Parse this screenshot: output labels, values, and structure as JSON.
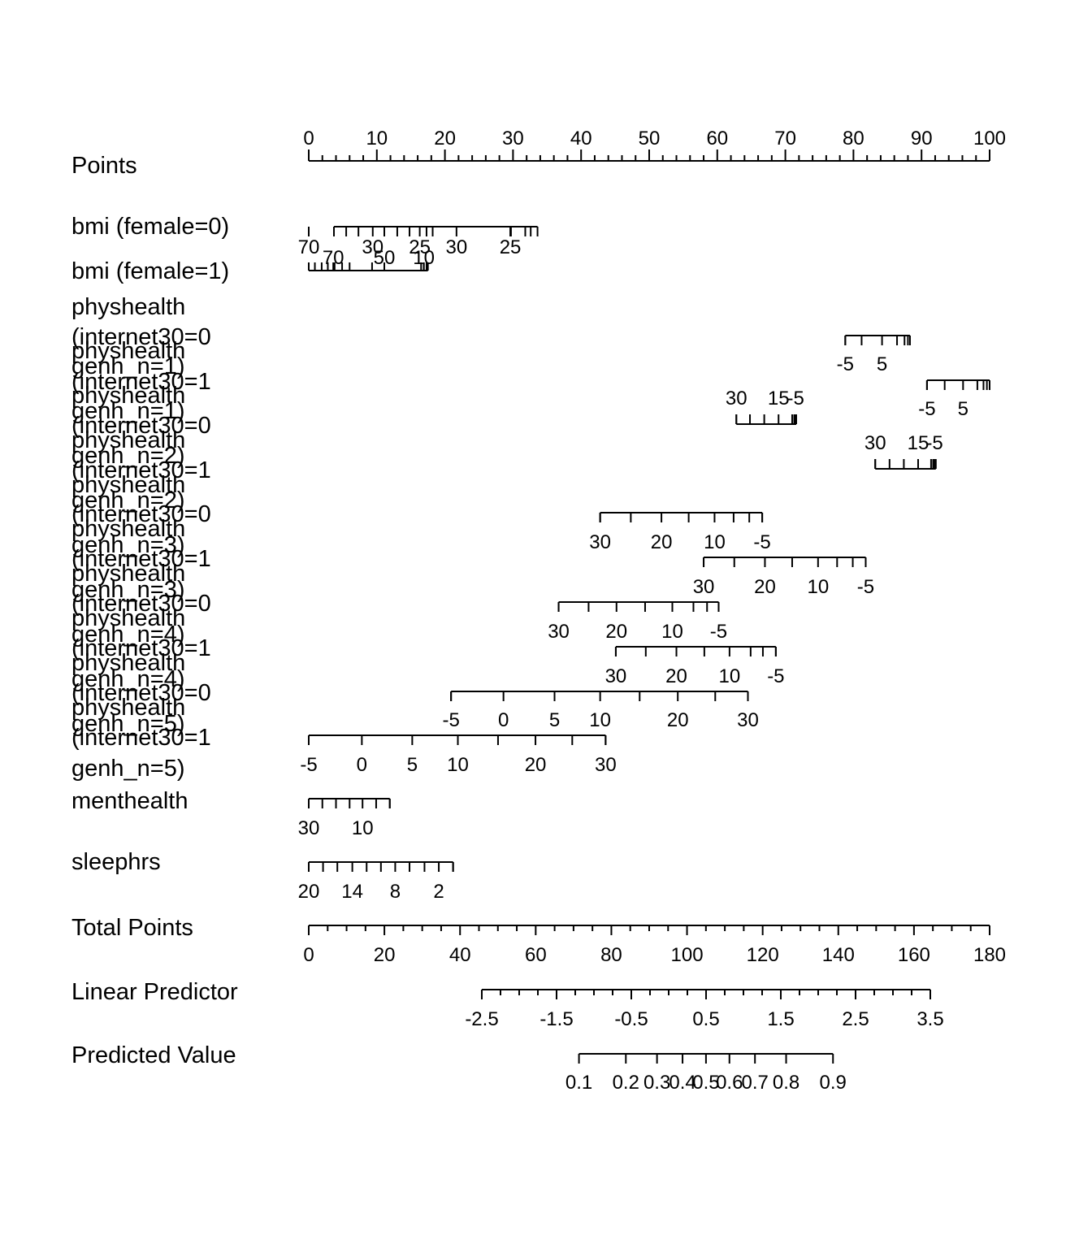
{
  "chart_data": {
    "type": "nomogram",
    "rows": [
      {
        "label": "Points",
        "range": [
          0,
          100
        ],
        "major_ticks": [
          "0",
          "10",
          "20",
          "30",
          "40",
          "50",
          "60",
          "70",
          "80",
          "90",
          "100"
        ],
        "minor_step": 2
      },
      {
        "label": "bmi (female=0)",
        "point_range": [
          3.7,
          33.6
        ],
        "tick_labels": [
          {
            "text": "70",
            "points": 0
          },
          {
            "text": "30",
            "points": 9.4
          },
          {
            "text": "25",
            "points": 16.3
          },
          {
            "text": "30",
            "points": 21.7
          },
          {
            "text": "25",
            "points": 29.6
          }
        ],
        "extra_ticks": [
          5.5,
          7.3,
          11.1,
          13,
          14.8,
          17.3,
          18.2,
          29.7,
          31.8,
          32.6
        ]
      },
      {
        "label": "bmi (female=1)",
        "point_range": [
          0,
          17.5
        ],
        "tick_labels": [
          {
            "text": "70",
            "points": 3.6
          },
          {
            "text": "50",
            "points": 11.1
          },
          {
            "text": "10",
            "points": 16.9
          }
        ],
        "extra_ticks": [
          0.9,
          1.9,
          2.8,
          3.8,
          4.9,
          6,
          9.3,
          16.5,
          16.9,
          17.3
        ]
      },
      {
        "label": "physhealth (internet30=0 genh_n=1)",
        "point_range": [
          78.8,
          88.3
        ],
        "tick_labels": [
          {
            "text": "-5",
            "points": 78.8
          },
          {
            "text": "5",
            "points": 84.2
          }
        ],
        "extra_ticks": [
          81.2,
          86.4,
          87.5,
          88.0
        ]
      },
      {
        "label": "physhealth (internet30=1 genh_n=1)",
        "point_range": [
          90.8,
          100
        ],
        "tick_labels": [
          {
            "text": "-5",
            "points": 90.8
          },
          {
            "text": "5",
            "points": 96.1
          }
        ],
        "extra_ticks": [
          93.4,
          98.2,
          99.1,
          99.6
        ]
      },
      {
        "label": "physhealth (internet30=0 genh_n=2)",
        "point_range": [
          62.8,
          71.6
        ],
        "tick_labels": [
          {
            "text": "30",
            "points": 62.8
          },
          {
            "text": "15",
            "points": 69.0
          },
          {
            "text": "-5",
            "points": 71.5
          }
        ],
        "extra_ticks": [
          64.8,
          66.9,
          71.0,
          71.3
        ]
      },
      {
        "label": "physhealth (internet30=1 genh_n=2)",
        "point_range": [
          83.2,
          92.1
        ],
        "tick_labels": [
          {
            "text": "30",
            "points": 83.2
          },
          {
            "text": "15",
            "points": 89.5
          },
          {
            "text": "-5",
            "points": 91.9
          }
        ],
        "extra_ticks": [
          85.3,
          87.4,
          91.4,
          91.7
        ]
      },
      {
        "label": "physhealth (internet30=0 genh_n=3)",
        "point_range": [
          42.8,
          66.6
        ],
        "tick_labels": [
          {
            "text": "30",
            "points": 42.8
          },
          {
            "text": "20",
            "points": 51.8
          },
          {
            "text": "10",
            "points": 59.6
          },
          {
            "text": "-5",
            "points": 66.6
          }
        ],
        "extra_ticks": [
          47.3,
          55.8,
          62.4,
          64.7
        ]
      },
      {
        "label": "physhealth (internet30=1 genh_n=3)",
        "point_range": [
          58.0,
          81.8
        ],
        "tick_labels": [
          {
            "text": "30",
            "points": 58.0
          },
          {
            "text": "20",
            "points": 67.0
          },
          {
            "text": "10",
            "points": 74.8
          },
          {
            "text": "-5",
            "points": 81.8
          }
        ],
        "extra_ticks": [
          62.5,
          71.0,
          77.6,
          79.9
        ]
      },
      {
        "label": "physhealth (internet30=0 genh_n=4)",
        "point_range": [
          36.7,
          60.2
        ],
        "tick_labels": [
          {
            "text": "30",
            "points": 36.7
          },
          {
            "text": "20",
            "points": 45.2
          },
          {
            "text": "10",
            "points": 53.4
          },
          {
            "text": "-5",
            "points": 60.2
          }
        ],
        "extra_ticks": [
          41.1,
          49.4,
          56.5,
          58.5
        ]
      },
      {
        "label": "physhealth (internet30=1 genh_n=4)",
        "point_range": [
          45.1,
          68.6
        ],
        "tick_labels": [
          {
            "text": "30",
            "points": 45.1
          },
          {
            "text": "20",
            "points": 54.0
          },
          {
            "text": "10",
            "points": 61.8
          },
          {
            "text": "-5",
            "points": 68.6
          }
        ],
        "extra_ticks": [
          49.5,
          58.1,
          64.9,
          66.7
        ]
      },
      {
        "label": "physhealth (internet30=0 genh_n=5)",
        "point_range": [
          20.9,
          64.5
        ],
        "tick_labels": [
          {
            "text": "-5",
            "points": 20.9
          },
          {
            "text": "0",
            "points": 28.6
          },
          {
            "text": "5",
            "points": 36.1
          },
          {
            "text": "10",
            "points": 42.8
          },
          {
            "text": "20",
            "points": 54.2
          },
          {
            "text": "30",
            "points": 64.5
          }
        ],
        "extra_ticks": [
          48.6,
          59.7
        ]
      },
      {
        "label": "physhealth (internet30=1 genh_n=5)",
        "point_range": [
          0,
          43.6
        ],
        "tick_labels": [
          {
            "text": "-5",
            "points": 0
          },
          {
            "text": "0",
            "points": 7.8
          },
          {
            "text": "5",
            "points": 15.2
          },
          {
            "text": "10",
            "points": 21.9
          },
          {
            "text": "20",
            "points": 33.3
          },
          {
            "text": "30",
            "points": 43.6
          }
        ],
        "extra_ticks": [
          27.8,
          38.7
        ]
      },
      {
        "label": "menthealth",
        "point_range": [
          0,
          11.9
        ],
        "tick_labels": [
          {
            "text": "30",
            "points": 0
          },
          {
            "text": "10",
            "points": 7.9
          }
        ],
        "extra_ticks": [
          2.0,
          4.0,
          6.0,
          9.9,
          11.9
        ]
      },
      {
        "label": "sleephrs",
        "point_range": [
          0,
          21.2
        ],
        "tick_labels": [
          {
            "text": "20",
            "points": 0
          },
          {
            "text": "14",
            "points": 6.4
          },
          {
            "text": "8",
            "points": 12.7
          },
          {
            "text": "2",
            "points": 19.1
          }
        ],
        "extra_ticks": [
          2.1,
          4.2,
          8.5,
          10.6,
          14.8,
          17.0,
          21.2
        ]
      },
      {
        "label": "Total Points",
        "range": [
          0,
          180
        ],
        "major_ticks": [
          "0",
          "20",
          "40",
          "60",
          "80",
          "100",
          "120",
          "140",
          "160",
          "180"
        ],
        "minor_step": 5
      },
      {
        "label": "Linear Predictor",
        "range": [
          -2.5,
          3.5
        ],
        "major_ticks": [
          "-2.5",
          "-1.5",
          "-0.5",
          "0.5",
          "1.5",
          "2.5",
          "3.5"
        ],
        "minor_step": 0.25
      },
      {
        "label": "Predicted Value",
        "probabilities": [
          0.1,
          0.2,
          0.3,
          0.4,
          0.5,
          0.6,
          0.7,
          0.8,
          0.9
        ],
        "tick_labels": [
          "0.1",
          "0.2",
          "0.3",
          "0.4",
          "0.5",
          "0.6",
          "0.7",
          "0.8",
          "0.9"
        ]
      }
    ]
  }
}
